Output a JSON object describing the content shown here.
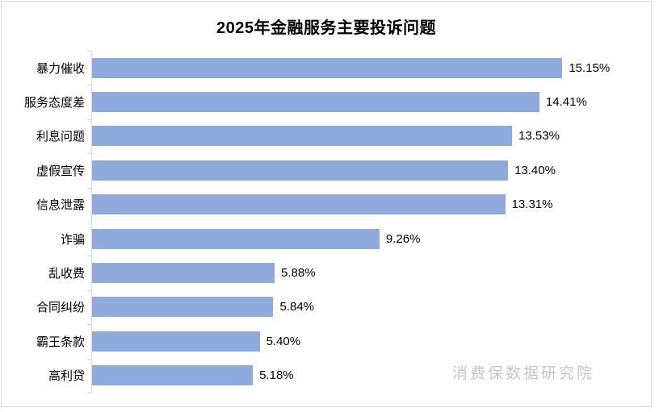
{
  "title": "2025年金融服务主要投诉问题",
  "watermark": "消费保数据研究院",
  "colors": {
    "bar": "#8FAADC",
    "axis": "#D9D9D9",
    "frame_border": "#D9D9D9",
    "title_text": "#000000",
    "label_text": "#000000",
    "watermark_text": "#C7C7C7"
  },
  "chart_data": {
    "type": "bar",
    "orientation": "horizontal",
    "title": "2025年金融服务主要投诉问题",
    "categories": [
      "暴力催收",
      "服务态度差",
      "利息问题",
      "虚假宣传",
      "信息泄露",
      "诈骗",
      "乱收费",
      "合同纠纷",
      "霸王条款",
      "高利贷"
    ],
    "values": [
      15.15,
      14.41,
      13.53,
      13.4,
      13.31,
      9.26,
      5.88,
      5.84,
      5.4,
      5.18
    ],
    "value_labels": [
      "15.15%",
      "14.41%",
      "13.53%",
      "13.40%",
      "13.31%",
      "9.26%",
      "5.88%",
      "5.84%",
      "5.40%",
      "5.18%"
    ],
    "xlabel": "",
    "ylabel": "",
    "xlim": [
      0,
      16
    ],
    "grid": false,
    "legend": false,
    "value_label_position": "outside-end",
    "bar_color": "#8FAADC"
  }
}
